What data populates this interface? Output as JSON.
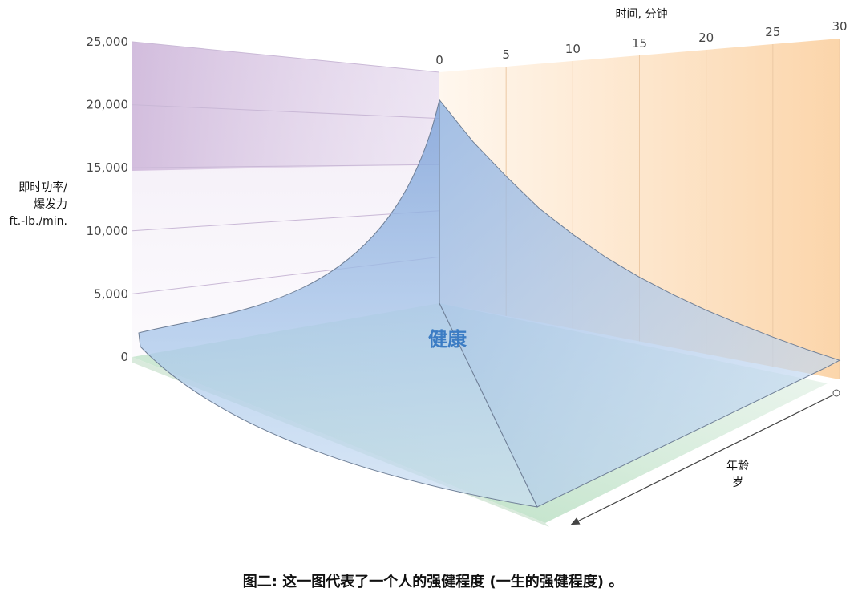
{
  "chart_data": {
    "type": "area",
    "title": "",
    "caption": "图二: 这一图代表了一个人的强健程度 (一生的强健程度) 。",
    "surface_label": "健康",
    "ylabel_lines": [
      "即时功率/",
      "爆发力",
      "ft.-lb./min."
    ],
    "xlabel": "时间, 分钟",
    "zlabel_lines": [
      "年龄",
      "岁"
    ],
    "ylim": [
      0,
      25000
    ],
    "y_ticks": [
      {
        "value": 0,
        "label": "0"
      },
      {
        "value": 5000,
        "label": "5,000"
      },
      {
        "value": 10000,
        "label": "10,000"
      },
      {
        "value": 15000,
        "label": "15,000"
      },
      {
        "value": 20000,
        "label": "20,000"
      },
      {
        "value": 25000,
        "label": "25,000"
      }
    ],
    "xlim": [
      0,
      30
    ],
    "x_ticks": [
      {
        "value": 0,
        "label": "0"
      },
      {
        "value": 5,
        "label": "5"
      },
      {
        "value": 10,
        "label": "10"
      },
      {
        "value": 15,
        "label": "15"
      },
      {
        "value": 20,
        "label": "20"
      },
      {
        "value": 25,
        "label": "25"
      },
      {
        "value": 30,
        "label": "30"
      }
    ],
    "curve": {
      "x": [
        0,
        2.5,
        5,
        7.5,
        10,
        12.5,
        15,
        17.5,
        20,
        22.5,
        25,
        27.5,
        30
      ],
      "y": [
        22000,
        17500,
        14000,
        11000,
        8800,
        7000,
        5600,
        4500,
        3600,
        2900,
        2300,
        1800,
        1400
      ]
    },
    "colors": {
      "back_wall_purple": "#cdb5d9",
      "right_wall_orange": "#fbd3a6",
      "floor_green": "#a9d8b5",
      "surface_blue": "#8fb2e0",
      "surface_label": "#3b7cc4"
    }
  }
}
